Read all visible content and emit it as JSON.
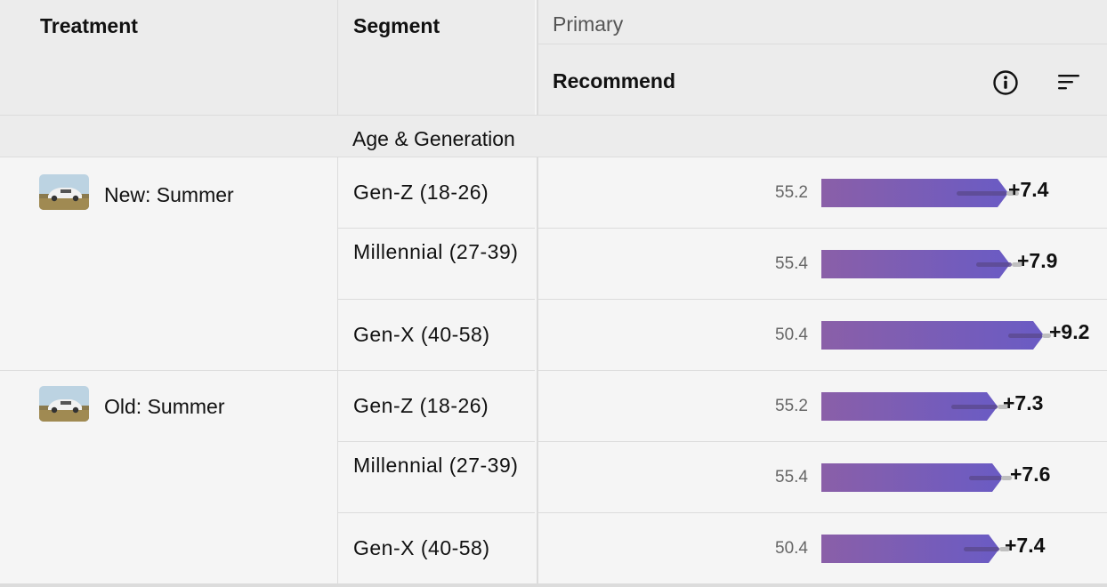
{
  "header": {
    "treatment": "Treatment",
    "segment": "Segment",
    "primary": "Primary",
    "metric": "Recommend",
    "icons": [
      "info-icon",
      "sort-icon"
    ]
  },
  "group": "Age & Generation",
  "treatments": [
    {
      "name": "New: Summer",
      "rows": [
        {
          "segment": "Gen-Z (18-26)",
          "value": "55.2",
          "delta": "+7.4"
        },
        {
          "segment": "Millennial (27-39)",
          "value": "55.4",
          "delta": "+7.9"
        },
        {
          "segment": "Gen-X (40-58)",
          "value": "50.4",
          "delta": "+9.2"
        }
      ]
    },
    {
      "name": "Old: Summer",
      "rows": [
        {
          "segment": "Gen-Z (18-26)",
          "value": "55.2",
          "delta": "+7.3"
        },
        {
          "segment": "Millennial (27-39)",
          "value": "55.4",
          "delta": "+7.6"
        },
        {
          "segment": "Gen-X (40-58)",
          "value": "50.4",
          "delta": "+7.4"
        }
      ]
    }
  ],
  "colors": {
    "bar_start": "#8a5fa8",
    "bar_end": "#6a5bc4",
    "border": "#dcdcdc"
  }
}
